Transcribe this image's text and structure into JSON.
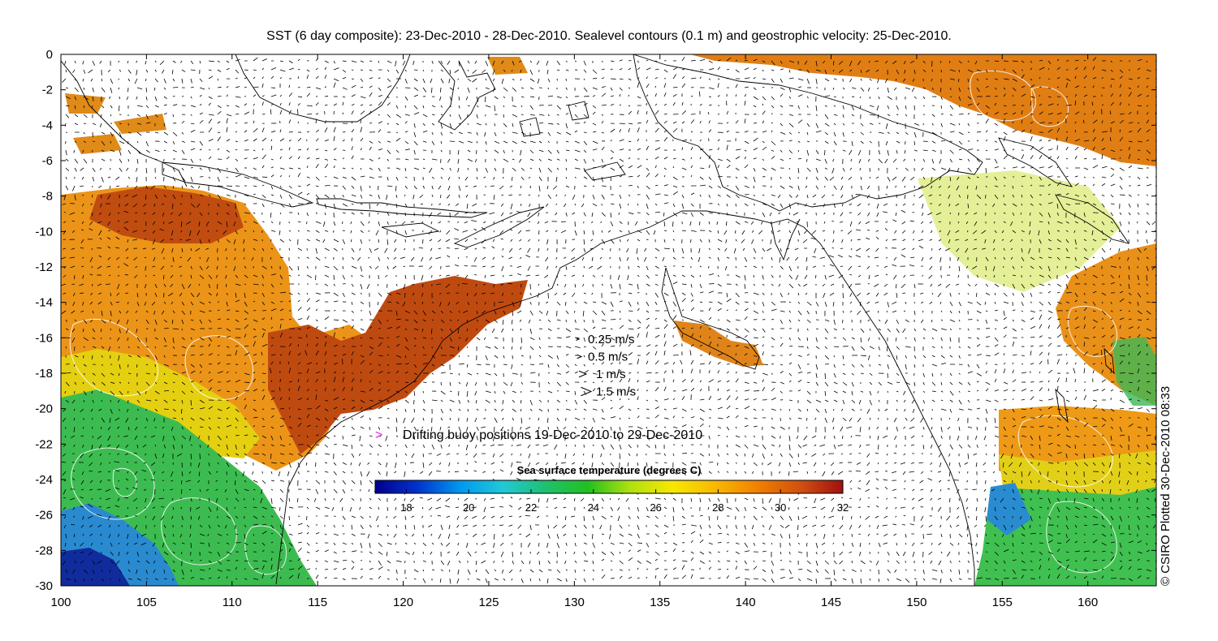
{
  "title": "SST (6 day composite): 23-Dec-2010 - 28-Dec-2010. Sealevel contours (0.1 m) and geostrophic velocity: 25-Dec-2010.",
  "credit": "© CSIRO Plotted 30-Dec-2010 08:33",
  "x_axis": {
    "ticks": [
      "100",
      "105",
      "110",
      "115",
      "120",
      "125",
      "130",
      "135",
      "140",
      "145",
      "150",
      "155",
      "160"
    ],
    "range": [
      100,
      164
    ]
  },
  "y_axis": {
    "ticks": [
      "0",
      "-2",
      "-4",
      "-6",
      "-8",
      "-10",
      "-12",
      "-14",
      "-16",
      "-18",
      "-20",
      "-22",
      "-24",
      "-26",
      "-28",
      "-30"
    ],
    "range": [
      -30,
      0
    ]
  },
  "velocity_legend": [
    {
      "label": "0.25 m/s",
      "speed": 0.25
    },
    {
      "label": "0.5 m/s",
      "speed": 0.5
    },
    {
      "label": "1 m/s",
      "speed": 1
    },
    {
      "label": "1.5 m/s",
      "speed": 1.5
    }
  ],
  "buoy_legend": {
    "label": "Drifting buoy positions 19-Dec-2010 to 29-Dec-2010",
    "color": "#e020e0"
  },
  "colorbar": {
    "title": "Sea surface temperature (degrees C)",
    "ticks": [
      "18",
      "20",
      "22",
      "24",
      "26",
      "28",
      "30",
      "32"
    ],
    "range": [
      17,
      32
    ],
    "colors": [
      "#00008c",
      "#0033cc",
      "#0099ee",
      "#22c8d8",
      "#20c070",
      "#22c020",
      "#b0e010",
      "#f8e800",
      "#f8b800",
      "#f08000",
      "#d05010",
      "#a01010"
    ]
  },
  "colors": {
    "land": "#ffffff",
    "coast": "#000000",
    "contour": "#ffffff",
    "arrow": "#000000"
  }
}
